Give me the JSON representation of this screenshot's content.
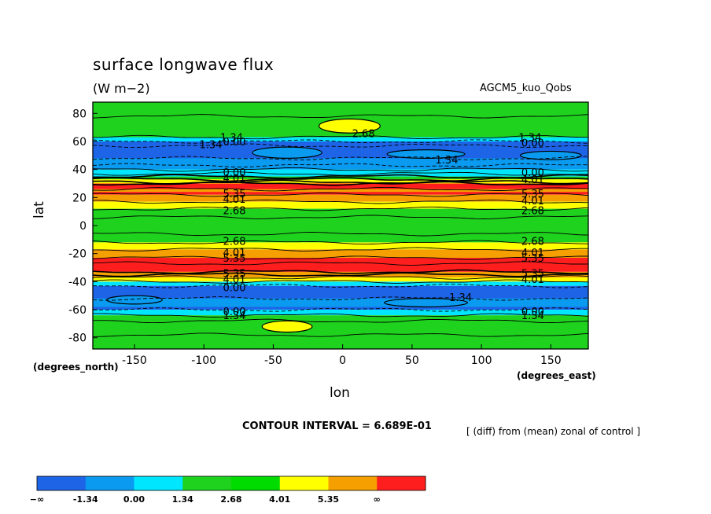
{
  "title": "surface longwave flux",
  "units": "(W m−2)",
  "model": "AGCM5_kuo_Qobs",
  "contour_interval": "CONTOUR INTERVAL = 6.689E-01",
  "diff_note": "[ (diff) from (mean) zonal of control ]",
  "chart_data": {
    "type": "heatmap",
    "title": "surface longwave flux",
    "xlabel": "lon",
    "xlabel_unit": "(degrees_east)",
    "ylabel": "lat",
    "ylabel_unit": "(degrees_north)",
    "xlim": [
      -180,
      177
    ],
    "ylim": [
      -88,
      88
    ],
    "x_ticks": [
      -150,
      -100,
      -50,
      0,
      50,
      100,
      150
    ],
    "y_ticks": [
      80,
      60,
      40,
      20,
      0,
      -20,
      -40,
      -60,
      -80
    ],
    "levels": [
      -1.34,
      0.0,
      1.34,
      2.68,
      4.01,
      5.35
    ],
    "legend": {
      "labels": [
        "−∞",
        "-1.34",
        "0.00",
        "1.34",
        "2.68",
        "4.01",
        "5.35",
        "∞"
      ],
      "colors": [
        "#1e64e6",
        "#0a9bf0",
        "#00e6ff",
        "#1ed21e",
        "#00dc00",
        "#ffff00",
        "#f5a000",
        "#ff1e1e"
      ]
    },
    "bands": [
      {
        "lat_from": 88,
        "lat_to": 60,
        "value_class": "1.34 to 2.68"
      },
      {
        "lat_from": 60,
        "lat_to": 40,
        "value_class": "-1.34 to 0.00"
      },
      {
        "lat_from": 40,
        "lat_to": 30,
        "value_class": "1.34 to 4.01"
      },
      {
        "lat_from": 30,
        "lat_to": 22,
        "value_class": "> 5.35"
      },
      {
        "lat_from": 22,
        "lat_to": 12,
        "value_class": "2.68 to 5.35"
      },
      {
        "lat_from": 12,
        "lat_to": -12,
        "value_class": "1.34 to 2.68"
      },
      {
        "lat_from": -12,
        "lat_to": -23,
        "value_class": "2.68 to 5.35"
      },
      {
        "lat_from": -23,
        "lat_to": -33,
        "value_class": "> 5.35"
      },
      {
        "lat_from": -33,
        "lat_to": -42,
        "value_class": "1.34 to 4.01"
      },
      {
        "lat_from": -42,
        "lat_to": -60,
        "value_class": "-1.34 to 0.00"
      },
      {
        "lat_from": -60,
        "lat_to": -88,
        "value_class": "1.34 to 2.68"
      }
    ],
    "contour_labels": [
      {
        "text": "1.34",
        "lon": -80,
        "lat": 63
      },
      {
        "text": "1.34",
        "lon": -95,
        "lat": 58
      },
      {
        "text": "0.00",
        "lon": -78,
        "lat": 60
      },
      {
        "text": "2.68",
        "lon": 15,
        "lat": 66
      },
      {
        "text": "1.34",
        "lon": 135,
        "lat": 63
      },
      {
        "text": "0.00",
        "lon": 137,
        "lat": 59
      },
      {
        "text": "1.34",
        "lon": 75,
        "lat": 47
      },
      {
        "text": "0.00",
        "lon": -78,
        "lat": 38
      },
      {
        "text": "4.01",
        "lon": -78,
        "lat": 34
      },
      {
        "text": "0.00",
        "lon": 137,
        "lat": 38
      },
      {
        "text": "4.01",
        "lon": 137,
        "lat": 33
      },
      {
        "text": "5.35",
        "lon": -78,
        "lat": 23
      },
      {
        "text": "4.01",
        "lon": -78,
        "lat": 19
      },
      {
        "text": "2.68",
        "lon": -78,
        "lat": 11
      },
      {
        "text": "5.35",
        "lon": 137,
        "lat": 23
      },
      {
        "text": "4.01",
        "lon": 137,
        "lat": 18
      },
      {
        "text": "2.68",
        "lon": 137,
        "lat": 11
      },
      {
        "text": "2.68",
        "lon": -78,
        "lat": -11
      },
      {
        "text": "4.01",
        "lon": -78,
        "lat": -19
      },
      {
        "text": "5.35",
        "lon": -78,
        "lat": -23
      },
      {
        "text": "2.68",
        "lon": 137,
        "lat": -11
      },
      {
        "text": "4.01",
        "lon": 137,
        "lat": -19
      },
      {
        "text": "5.35",
        "lon": 137,
        "lat": -23
      },
      {
        "text": "5.35",
        "lon": -78,
        "lat": -34
      },
      {
        "text": "4.01",
        "lon": -78,
        "lat": -38
      },
      {
        "text": "0.00",
        "lon": -78,
        "lat": -44
      },
      {
        "text": "5.35",
        "lon": 137,
        "lat": -34
      },
      {
        "text": "4.01",
        "lon": 137,
        "lat": -38
      },
      {
        "text": "1.34",
        "lon": 85,
        "lat": -51
      },
      {
        "text": "0.00",
        "lon": -78,
        "lat": -61
      },
      {
        "text": "1.34",
        "lon": -78,
        "lat": -64
      },
      {
        "text": "0.00",
        "lon": 137,
        "lat": -61
      },
      {
        "text": "1.34",
        "lon": 137,
        "lat": -64
      }
    ]
  }
}
